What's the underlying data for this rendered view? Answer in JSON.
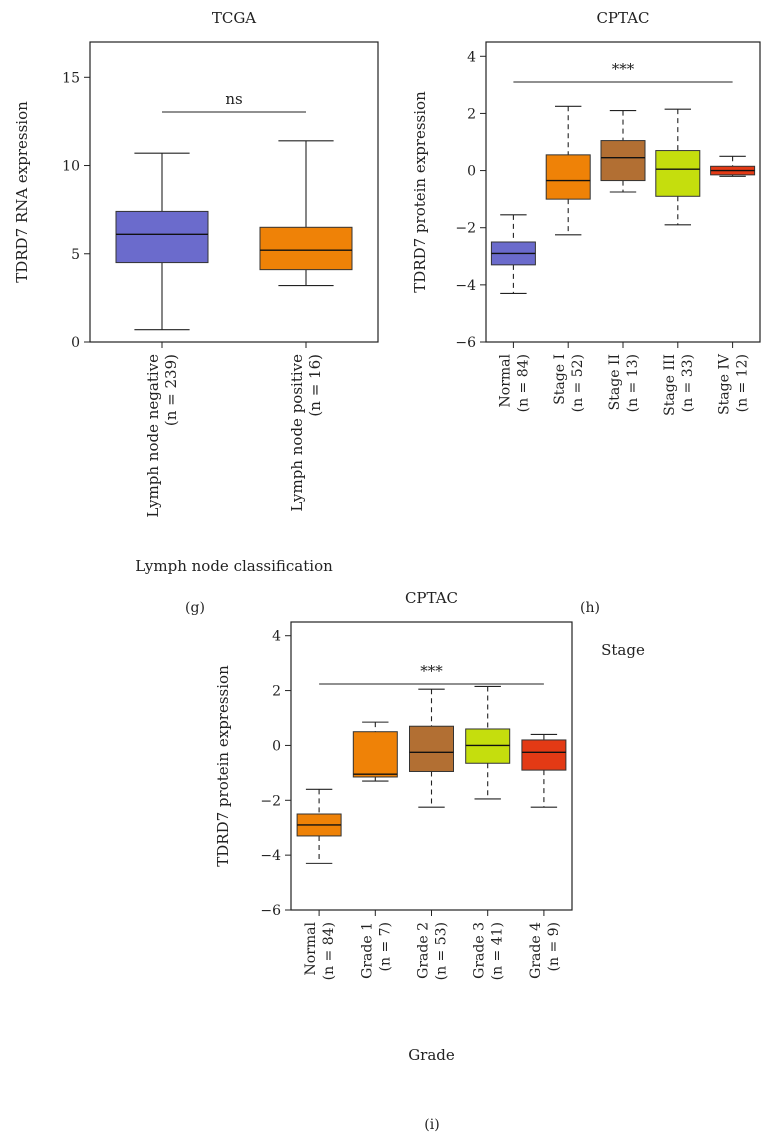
{
  "colors": {
    "blue": "#6b6bcc",
    "orange": "#ef8207",
    "brown": "#b26f33",
    "lime": "#c5de0d",
    "red": "#e33a15"
  },
  "panel_labels": [
    "(g)",
    "(h)",
    "(i)"
  ],
  "chart_data": [
    {
      "type": "box",
      "title": "TCGA",
      "ylabel": "TDRD7 RNA expression",
      "xlabel": "Lymph node classification",
      "ylim": [
        0,
        17
      ],
      "yticks": [
        0,
        5,
        10,
        15
      ],
      "significance": "ns",
      "boxes": [
        {
          "label": "Lymph node negative",
          "n": "(n = 239)",
          "color": "#6b6bcc",
          "min": 0.7,
          "q1": 4.5,
          "median": 6.1,
          "q3": 7.4,
          "max": 10.7
        },
        {
          "label": "Lymph node positive",
          "n": "(n = 16)",
          "color": "#ef8207",
          "min": 3.2,
          "q1": 4.1,
          "median": 5.2,
          "q3": 6.5,
          "max": 11.4
        }
      ]
    },
    {
      "type": "box",
      "title": "CPTAC",
      "ylabel": "TDRD7 protein expression",
      "xlabel": "Stage",
      "ylim": [
        -6,
        4.5
      ],
      "yticks": [
        -6,
        -4,
        -2,
        0,
        2,
        4
      ],
      "significance": "***",
      "boxes": [
        {
          "label": "Normal",
          "n": "(n = 84)",
          "color": "#6b6bcc",
          "min": -4.3,
          "q1": -3.3,
          "median": -2.9,
          "q3": -2.5,
          "max": -1.55
        },
        {
          "label": "Stage I",
          "n": "(n = 52)",
          "color": "#ef8207",
          "min": -2.25,
          "q1": -1.0,
          "median": -0.35,
          "q3": 0.55,
          "max": 2.25
        },
        {
          "label": "Stage II",
          "n": "(n = 13)",
          "color": "#b26f33",
          "min": -0.75,
          "q1": -0.35,
          "median": 0.45,
          "q3": 1.05,
          "max": 2.1
        },
        {
          "label": "Stage III",
          "n": "(n = 33)",
          "color": "#c5de0d",
          "min": -1.9,
          "q1": -0.9,
          "median": 0.05,
          "q3": 0.7,
          "max": 2.15
        },
        {
          "label": "Stage IV",
          "n": "(n = 12)",
          "color": "#e33a15",
          "min": -0.2,
          "q1": -0.15,
          "median": 0.0,
          "q3": 0.15,
          "max": 0.5
        }
      ]
    },
    {
      "type": "box",
      "title": "CPTAC",
      "ylabel": "TDRD7 protein expression",
      "xlabel": "Grade",
      "ylim": [
        -6,
        4.5
      ],
      "yticks": [
        -6,
        -4,
        -2,
        0,
        2,
        4
      ],
      "significance": "***",
      "boxes": [
        {
          "label": "Normal",
          "n": "(n = 84)",
          "color": "#ef8207",
          "min": -4.3,
          "q1": -3.3,
          "median": -2.9,
          "q3": -2.5,
          "max": -1.6
        },
        {
          "label": "Grade 1",
          "n": "(n = 7)",
          "color": "#ef8207",
          "min": -1.3,
          "q1": -1.15,
          "median": -1.05,
          "q3": 0.5,
          "max": 0.85
        },
        {
          "label": "Grade 2",
          "n": "(n = 53)",
          "color": "#b26f33",
          "min": -2.25,
          "q1": -0.95,
          "median": -0.25,
          "q3": 0.7,
          "max": 2.05
        },
        {
          "label": "Grade 3",
          "n": "(n = 41)",
          "color": "#c5de0d",
          "min": -1.95,
          "q1": -0.65,
          "median": 0.0,
          "q3": 0.6,
          "max": 2.15
        },
        {
          "label": "Grade 4",
          "n": "(n = 9)",
          "color": "#e33a15",
          "min": -2.25,
          "q1": -0.9,
          "median": -0.25,
          "q3": 0.2,
          "max": 0.4
        }
      ]
    }
  ]
}
